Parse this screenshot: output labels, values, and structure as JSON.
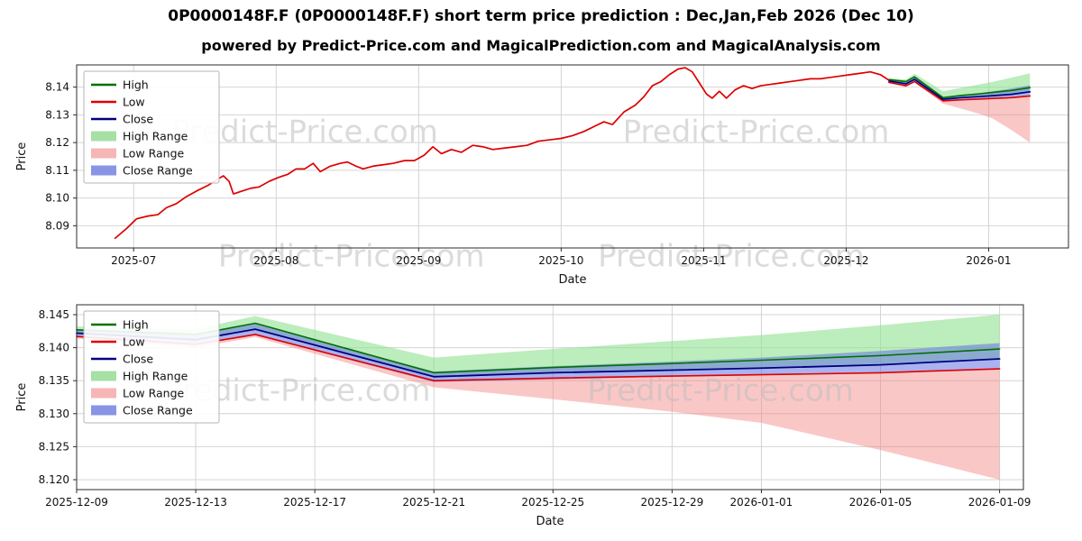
{
  "header": {
    "title": "0P0000148F.F (0P0000148F.F) short term price prediction : Dec,Jan,Feb 2026 (Dec 10)",
    "subtitle": "powered by Predict-Price.com and MagicalPrediction.com and MagicalAnalysis.com"
  },
  "watermark": {
    "text": "Predict-Price.com",
    "color": "#bfbfbf"
  },
  "chart_data": [
    {
      "type": "line",
      "xlabel": "Date",
      "ylabel": "Price",
      "xlim": [
        6.6,
        13.56
      ],
      "ylim": [
        8.082,
        8.148
      ],
      "grid": true,
      "legend_position": "upper left",
      "x_ticks": [
        {
          "v": 7,
          "label": "2025-07"
        },
        {
          "v": 8,
          "label": "2025-08"
        },
        {
          "v": 9,
          "label": "2025-09"
        },
        {
          "v": 10,
          "label": "2025-10"
        },
        {
          "v": 11,
          "label": "2025-11"
        },
        {
          "v": 12,
          "label": "2025-12"
        },
        {
          "v": 13,
          "label": "2026-01"
        }
      ],
      "y_ticks": [
        {
          "v": 8.09,
          "label": "8.09"
        },
        {
          "v": 8.1,
          "label": "8.10"
        },
        {
          "v": 8.11,
          "label": "8.11"
        },
        {
          "v": 8.12,
          "label": "8.12"
        },
        {
          "v": 8.13,
          "label": "8.13"
        },
        {
          "v": 8.14,
          "label": "8.14"
        }
      ],
      "legend": [
        {
          "label": "High",
          "type": "line",
          "color": "#007000"
        },
        {
          "label": "Low",
          "type": "line",
          "color": "#dd0000"
        },
        {
          "label": "Close",
          "type": "line",
          "color": "#000080"
        },
        {
          "label": "High Range",
          "type": "patch",
          "color": "#a6e0a6"
        },
        {
          "label": "Low Range",
          "type": "patch",
          "color": "#f6b6b6"
        },
        {
          "label": "Close Range",
          "type": "patch",
          "color": "#8894e4"
        }
      ],
      "bands": [
        {
          "name": "low-range",
          "fill": "rgba(245,130,130,0.45)",
          "x": [
            12.3,
            12.42,
            12.48,
            12.68,
            12.81,
            12.94,
            13.03,
            13.16,
            13.29
          ],
          "upper": [
            8.1418,
            8.1406,
            8.1421,
            8.135,
            8.1354,
            8.1357,
            8.1359,
            8.1362,
            8.1368
          ],
          "lower": [
            8.1414,
            8.14,
            8.1416,
            8.134,
            8.1322,
            8.1303,
            8.1286,
            8.1245,
            8.12
          ]
        },
        {
          "name": "high-range",
          "fill": "rgba(144,225,144,0.6)",
          "x": [
            12.3,
            12.42,
            12.48,
            12.68,
            12.81,
            12.94,
            13.03,
            13.16,
            13.29
          ],
          "upper": [
            8.1432,
            8.1428,
            8.1448,
            8.1385,
            8.1398,
            8.141,
            8.1419,
            8.1434,
            8.145
          ],
          "lower": [
            8.1422,
            8.1412,
            8.1428,
            8.1356,
            8.1362,
            8.1366,
            8.1369,
            8.1374,
            8.1383
          ]
        },
        {
          "name": "close-range",
          "fill": "rgba(100,115,225,0.55)",
          "x": [
            12.3,
            12.42,
            12.48,
            12.68,
            12.81,
            12.94,
            13.03,
            13.16,
            13.29
          ],
          "upper": [
            8.1428,
            8.142,
            8.1436,
            8.1364,
            8.1372,
            8.1379,
            8.1385,
            8.1395,
            8.1407
          ],
          "lower": [
            8.1416,
            8.1404,
            8.1419,
            8.1348,
            8.1352,
            8.1356,
            8.1359,
            8.1362,
            8.1368
          ]
        }
      ],
      "series": [
        {
          "name": "forecast-low",
          "label": "Low",
          "color": "#dd0000",
          "width": 1.6,
          "x": [
            12.3,
            12.42,
            12.48,
            12.68,
            12.81,
            12.94,
            13.03,
            13.16,
            13.29
          ],
          "y": [
            8.1417,
            8.1405,
            8.142,
            8.135,
            8.1354,
            8.1357,
            8.1359,
            8.1362,
            8.1368
          ]
        },
        {
          "name": "forecast-high",
          "label": "High",
          "color": "#007000",
          "width": 1.6,
          "x": [
            12.3,
            12.42,
            12.48,
            12.68,
            12.81,
            12.94,
            13.03,
            13.16,
            13.29
          ],
          "y": [
            8.1427,
            8.142,
            8.1437,
            8.1362,
            8.137,
            8.1376,
            8.1381,
            8.1388,
            8.1398
          ]
        },
        {
          "name": "forecast-close",
          "label": "Close",
          "color": "#000080",
          "width": 1.7,
          "x": [
            12.3,
            12.42,
            12.48,
            12.68,
            12.81,
            12.94,
            13.03,
            13.16,
            13.29
          ],
          "y": [
            8.1422,
            8.1412,
            8.1428,
            8.1356,
            8.1362,
            8.1366,
            8.1369,
            8.1374,
            8.1383
          ]
        },
        {
          "name": "history-low",
          "label": "Low",
          "color": "#dd0000",
          "width": 1.7,
          "x": [
            6.87,
            6.95,
            7.02,
            7.1,
            7.17,
            7.23,
            7.3,
            7.37,
            7.44,
            7.52,
            7.58,
            7.63,
            7.67,
            7.7,
            7.76,
            7.82,
            7.88,
            7.95,
            8.02,
            8.08,
            8.14,
            8.2,
            8.26,
            8.31,
            8.38,
            8.45,
            8.5,
            8.56,
            8.61,
            8.68,
            8.75,
            8.82,
            8.9,
            8.97,
            9.04,
            9.1,
            9.16,
            9.23,
            9.3,
            9.38,
            9.45,
            9.52,
            9.6,
            9.68,
            9.76,
            9.84,
            9.92,
            10.0,
            10.08,
            10.16,
            10.24,
            10.3,
            10.36,
            10.44,
            10.52,
            10.58,
            10.64,
            10.7,
            10.76,
            10.82,
            10.87,
            10.92,
            10.97,
            11.02,
            11.06,
            11.11,
            11.16,
            11.22,
            11.28,
            11.34,
            11.4,
            11.47,
            11.54,
            11.61,
            11.68,
            11.75,
            11.82,
            11.89,
            11.96,
            12.03,
            12.1,
            12.17,
            12.24,
            12.3
          ],
          "y": [
            8.0855,
            8.089,
            8.0925,
            8.0935,
            8.094,
            8.0965,
            8.098,
            8.1005,
            8.1025,
            8.1045,
            8.1065,
            8.108,
            8.106,
            8.1015,
            8.1025,
            8.1035,
            8.104,
            8.106,
            8.1075,
            8.1085,
            8.1105,
            8.1105,
            8.1125,
            8.1095,
            8.1115,
            8.1125,
            8.113,
            8.1115,
            8.1105,
            8.1115,
            8.112,
            8.1125,
            8.1135,
            8.1135,
            8.1155,
            8.1185,
            8.116,
            8.1175,
            8.1165,
            8.119,
            8.1185,
            8.1175,
            8.118,
            8.1185,
            8.119,
            8.1205,
            8.121,
            8.1215,
            8.1225,
            8.124,
            8.126,
            8.1275,
            8.1265,
            8.131,
            8.1335,
            8.1365,
            8.1405,
            8.142,
            8.1445,
            8.1465,
            8.147,
            8.1455,
            8.1415,
            8.1375,
            8.136,
            8.1385,
            8.136,
            8.139,
            8.1405,
            8.1395,
            8.1405,
            8.141,
            8.1415,
            8.142,
            8.1425,
            8.143,
            8.143,
            8.1435,
            8.144,
            8.1445,
            8.145,
            8.1455,
            8.1445,
            8.1425
          ]
        }
      ]
    },
    {
      "type": "line",
      "xlabel": "Date",
      "ylabel": "Price",
      "xlim": [
        0,
        31.8
      ],
      "ylim": [
        8.1185,
        8.1465
      ],
      "grid": true,
      "legend_position": "upper left",
      "x_ticks": [
        {
          "v": 0,
          "label": "2025-12-09"
        },
        {
          "v": 4,
          "label": "2025-12-13"
        },
        {
          "v": 8,
          "label": "2025-12-17"
        },
        {
          "v": 12,
          "label": "2025-12-21"
        },
        {
          "v": 16,
          "label": "2025-12-25"
        },
        {
          "v": 20,
          "label": "2025-12-29"
        },
        {
          "v": 23,
          "label": "2026-01-01"
        },
        {
          "v": 27,
          "label": "2026-01-05"
        },
        {
          "v": 31,
          "label": "2026-01-09"
        }
      ],
      "y_ticks": [
        {
          "v": 8.12,
          "label": "8.120"
        },
        {
          "v": 8.125,
          "label": "8.125"
        },
        {
          "v": 8.13,
          "label": "8.130"
        },
        {
          "v": 8.135,
          "label": "8.135"
        },
        {
          "v": 8.14,
          "label": "8.140"
        },
        {
          "v": 8.145,
          "label": "8.145"
        }
      ],
      "legend": [
        {
          "label": "High",
          "type": "line",
          "color": "#007000"
        },
        {
          "label": "Low",
          "type": "line",
          "color": "#dd0000"
        },
        {
          "label": "Close",
          "type": "line",
          "color": "#000080"
        },
        {
          "label": "High Range",
          "type": "patch",
          "color": "#a6e0a6"
        },
        {
          "label": "Low Range",
          "type": "patch",
          "color": "#f6b6b6"
        },
        {
          "label": "Close Range",
          "type": "patch",
          "color": "#8894e4"
        }
      ],
      "bands": [
        {
          "name": "low-range",
          "fill": "rgba(245,130,130,0.45)",
          "x": [
            0,
            4,
            6,
            12,
            16,
            20,
            23,
            27,
            31
          ],
          "upper": [
            8.1418,
            8.1406,
            8.1421,
            8.135,
            8.1354,
            8.1357,
            8.1359,
            8.1362,
            8.1368
          ],
          "lower": [
            8.1414,
            8.14,
            8.1416,
            8.134,
            8.1322,
            8.1303,
            8.1286,
            8.1245,
            8.12
          ]
        },
        {
          "name": "high-range",
          "fill": "rgba(144,225,144,0.6)",
          "x": [
            0,
            4,
            6,
            12,
            16,
            20,
            23,
            27,
            31
          ],
          "upper": [
            8.1432,
            8.1428,
            8.1448,
            8.1385,
            8.1398,
            8.141,
            8.1419,
            8.1434,
            8.145
          ],
          "lower": [
            8.1422,
            8.1412,
            8.1428,
            8.1356,
            8.1362,
            8.1366,
            8.1369,
            8.1374,
            8.1383
          ]
        },
        {
          "name": "close-range",
          "fill": "rgba(100,115,225,0.55)",
          "x": [
            0,
            4,
            6,
            12,
            16,
            20,
            23,
            27,
            31
          ],
          "upper": [
            8.1428,
            8.142,
            8.1436,
            8.1364,
            8.1372,
            8.1379,
            8.1385,
            8.1395,
            8.1407
          ],
          "lower": [
            8.1416,
            8.1404,
            8.1419,
            8.1348,
            8.1352,
            8.1356,
            8.1359,
            8.1362,
            8.1368
          ]
        }
      ],
      "series": [
        {
          "name": "forecast-low",
          "label": "Low",
          "color": "#dd0000",
          "width": 1.6,
          "x": [
            0,
            4,
            6,
            12,
            16,
            20,
            23,
            27,
            31
          ],
          "y": [
            8.1417,
            8.1405,
            8.142,
            8.135,
            8.1354,
            8.1357,
            8.1359,
            8.1362,
            8.1368
          ]
        },
        {
          "name": "forecast-high",
          "label": "High",
          "color": "#007000",
          "width": 1.6,
          "x": [
            0,
            4,
            6,
            12,
            16,
            20,
            23,
            27,
            31
          ],
          "y": [
            8.1427,
            8.142,
            8.1437,
            8.1362,
            8.137,
            8.1376,
            8.1381,
            8.1388,
            8.1398
          ]
        },
        {
          "name": "forecast-close",
          "label": "Close",
          "color": "#000080",
          "width": 1.8,
          "x": [
            0,
            4,
            6,
            12,
            16,
            20,
            23,
            27,
            31
          ],
          "y": [
            8.1422,
            8.1412,
            8.1428,
            8.1356,
            8.1362,
            8.1366,
            8.1369,
            8.1374,
            8.1383
          ]
        }
      ]
    }
  ]
}
